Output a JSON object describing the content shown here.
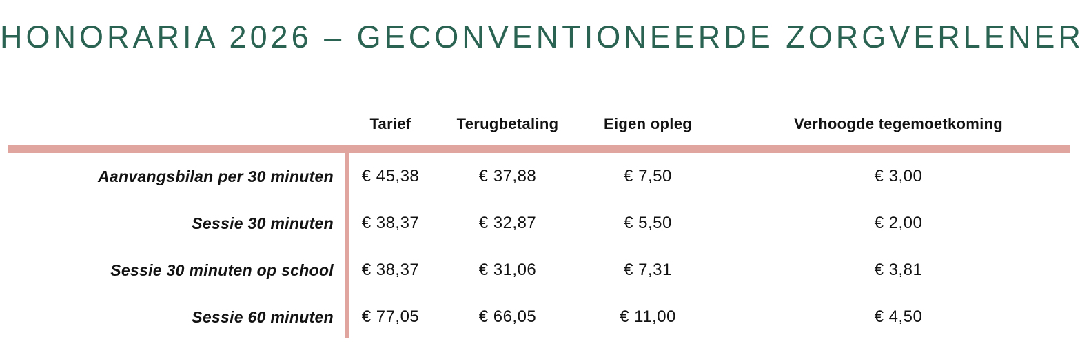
{
  "title": "HONORARIA 2026 – GECONVENTIONEERDE ZORGVERLENER",
  "colors": {
    "title_green": "#2a6352",
    "divider_salmon": "#e0a59e",
    "text_black": "#121212"
  },
  "table": {
    "columns": [
      "Tarief",
      "Terugbetaling",
      "Eigen opleg",
      "Verhoogde tegemoetkoming"
    ],
    "rows": [
      {
        "label": "Aanvangsbilan per 30 minuten",
        "values": [
          "€ 45,38",
          "€ 37,88",
          "€ 7,50",
          "€ 3,00"
        ]
      },
      {
        "label": "Sessie 30 minuten",
        "values": [
          "€ 38,37",
          "€ 32,87",
          "€ 5,50",
          "€ 2,00"
        ]
      },
      {
        "label": "Sessie 30 minuten op school",
        "values": [
          "€ 38,37",
          "€ 31,06",
          "€ 7,31",
          "€ 3,81"
        ]
      },
      {
        "label": "Sessie 60 minuten",
        "values": [
          "€ 77,05",
          "€ 66,05",
          "€ 11,00",
          "€ 4,50"
        ]
      }
    ]
  }
}
